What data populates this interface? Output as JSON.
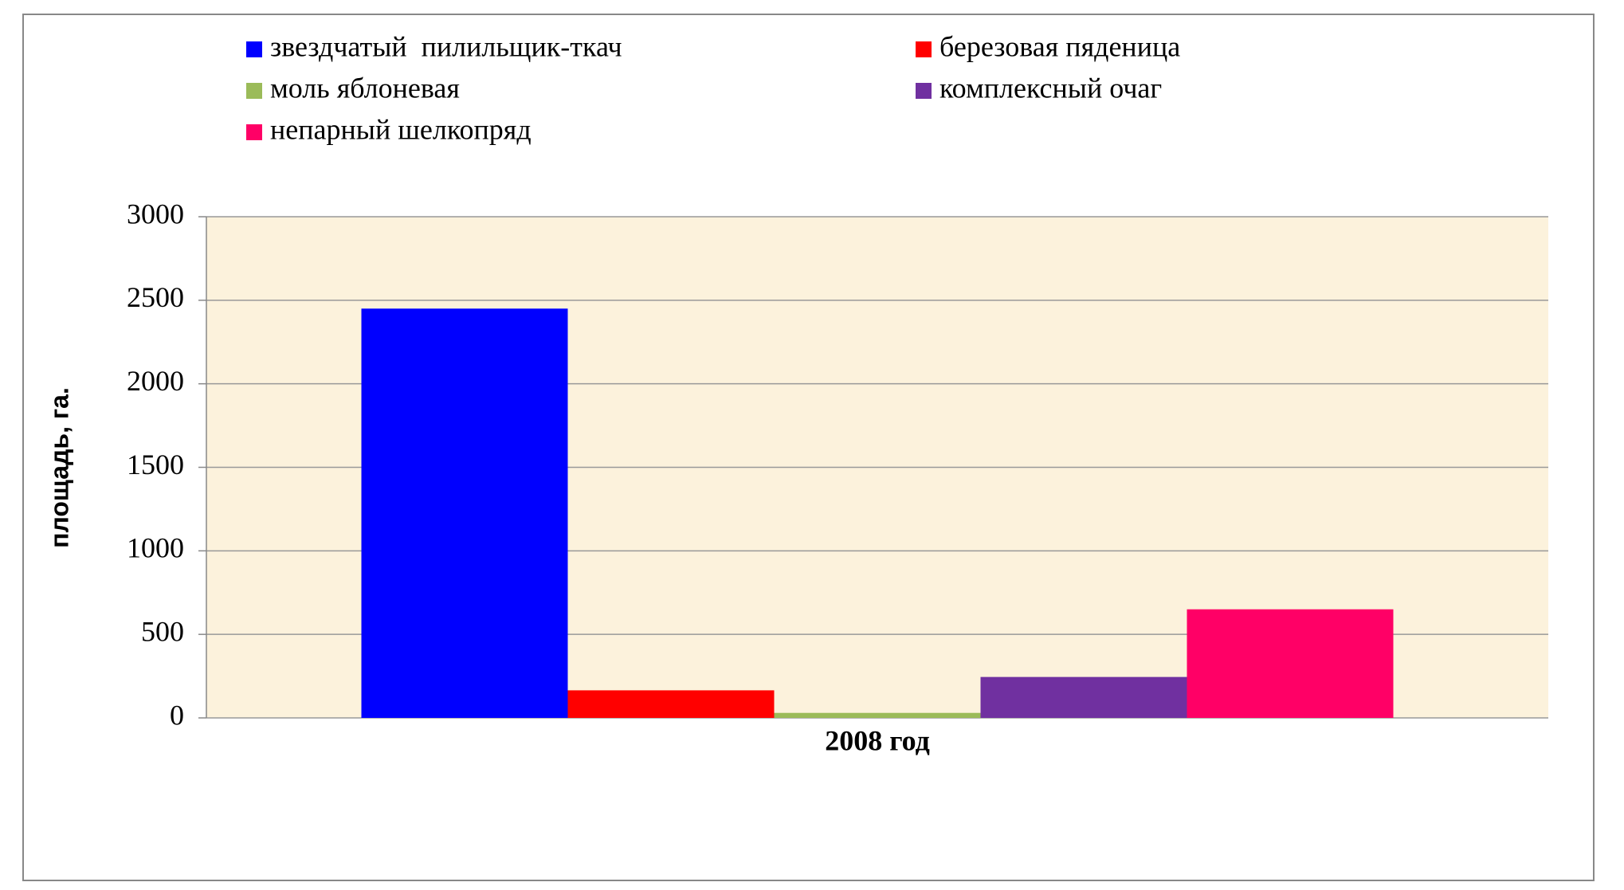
{
  "chart_data": {
    "type": "bar",
    "y_label": "площадь, га.",
    "categories": [
      "2008 год"
    ],
    "series": [
      {
        "name": "звездчатый  пилильщик-ткач",
        "color": "#0000ff",
        "values": [
          2450
        ]
      },
      {
        "name": "березовая пяденица",
        "color": "#ff0000",
        "values": [
          165
        ]
      },
      {
        "name": "моль яблоневая",
        "color": "#9bbb59",
        "values": [
          30
        ]
      },
      {
        "name": "комплексный очаг",
        "color": "#7030a0",
        "values": [
          245
        ]
      },
      {
        "name": "непарный шелкопряд",
        "color": "#ff0066",
        "values": [
          650
        ]
      }
    ],
    "ylim": [
      0,
      3000
    ],
    "yticks": [
      0,
      500,
      1000,
      1500,
      2000,
      2500,
      3000
    ],
    "grid": true,
    "legend": "top"
  }
}
